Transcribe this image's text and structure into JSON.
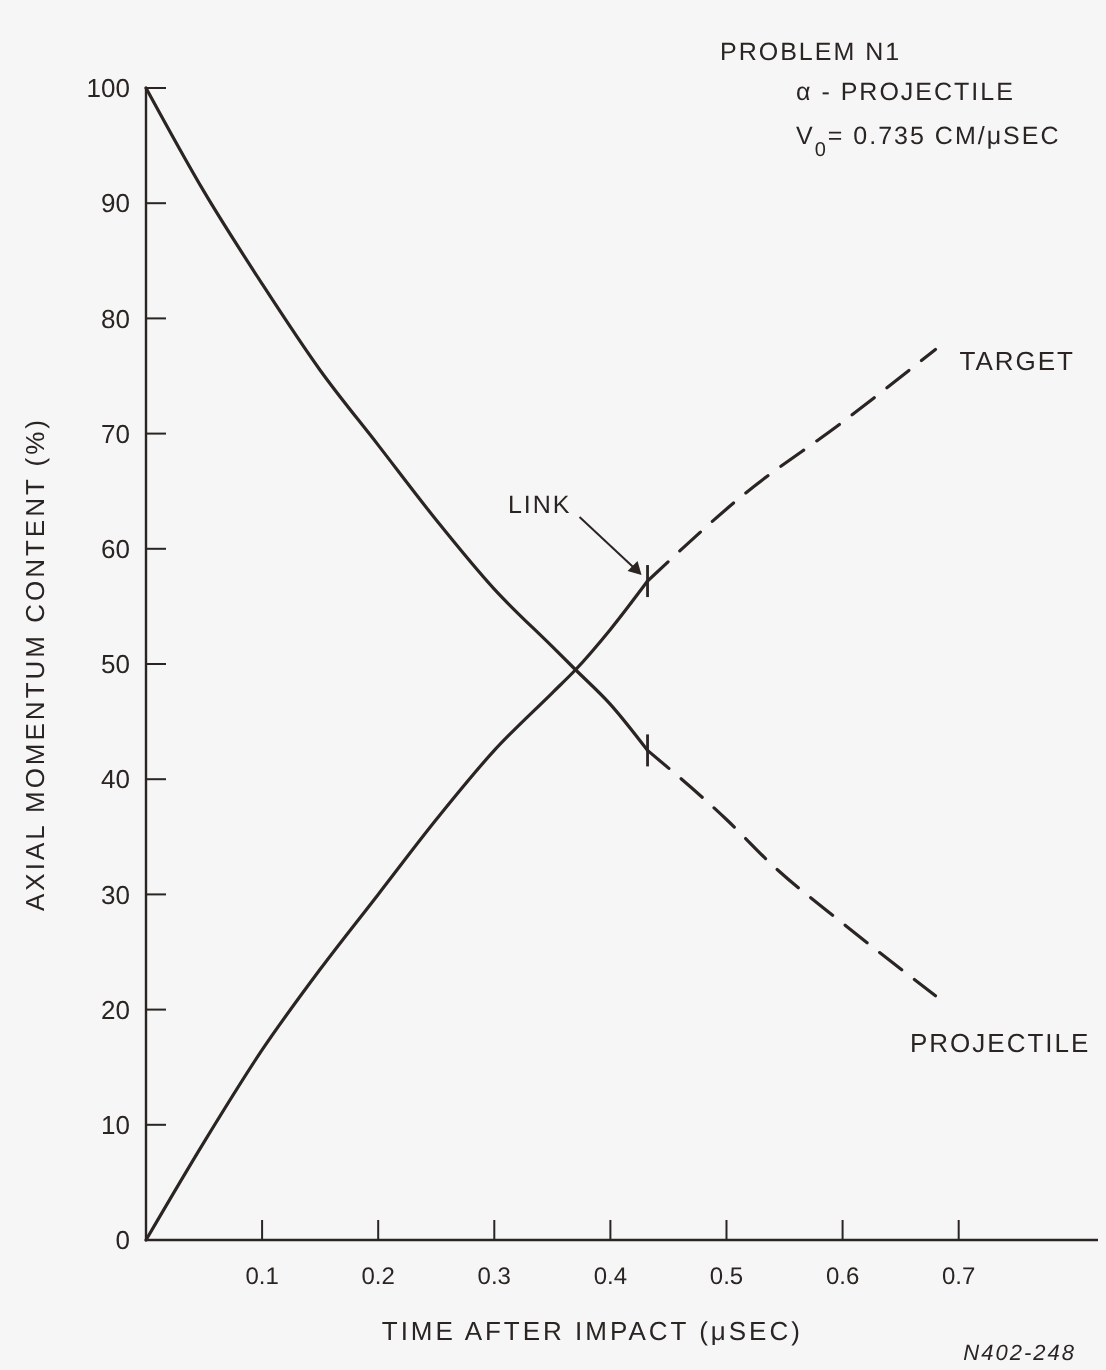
{
  "chart_data": {
    "type": "line",
    "xlabel": "TIME AFTER IMPACT (μSEC)",
    "ylabel": "AXIAL MOMENTUM CONTENT (%)",
    "xlim": [
      0,
      0.82
    ],
    "xticks": [
      0.1,
      0.2,
      0.3,
      0.4,
      0.5,
      0.6,
      0.7
    ],
    "ylim": [
      0,
      100
    ],
    "yticks": [
      0,
      10,
      20,
      30,
      40,
      50,
      60,
      70,
      80,
      90,
      100
    ],
    "grid": false,
    "legend": false,
    "series": [
      {
        "color": "#2a2422",
        "line_style": "solid",
        "x": [
          0,
          0.05,
          0.1,
          0.15,
          0.2,
          0.25,
          0.3,
          0.35,
          0.37,
          0.4,
          0.432
        ],
        "values": [
          100,
          91,
          83,
          75.5,
          69,
          62.5,
          56.5,
          51.5,
          49.5,
          46.5,
          42.5
        ]
      },
      {
        "name": "PROJECTILE",
        "color": "#2a2422",
        "line_style": "dashed",
        "x": [
          0.432,
          0.5,
          0.54,
          0.6,
          0.68
        ],
        "values": [
          42.5,
          36.5,
          32.5,
          27.5,
          21.2
        ]
      },
      {
        "color": "#2a2422",
        "line_style": "solid",
        "x": [
          0,
          0.05,
          0.1,
          0.15,
          0.2,
          0.25,
          0.3,
          0.35,
          0.37,
          0.4,
          0.432
        ],
        "values": [
          0,
          8.5,
          16.5,
          23.5,
          30,
          36.5,
          42.5,
          47.5,
          49.5,
          53,
          57.2
        ]
      },
      {
        "name": "TARGET",
        "color": "#2a2422",
        "line_style": "dashed",
        "x": [
          0.432,
          0.516,
          0.6,
          0.68
        ],
        "values": [
          57.2,
          64.8,
          71,
          77.3
        ]
      }
    ],
    "annotations": [
      "PROBLEM N1",
      "α - PROJECTILE",
      "V$_{0}$= 0.735 CM/μSEC",
      {
        "text": "LINK",
        "x": 0.432,
        "y": 57.2
      },
      "N402-248"
    ]
  }
}
